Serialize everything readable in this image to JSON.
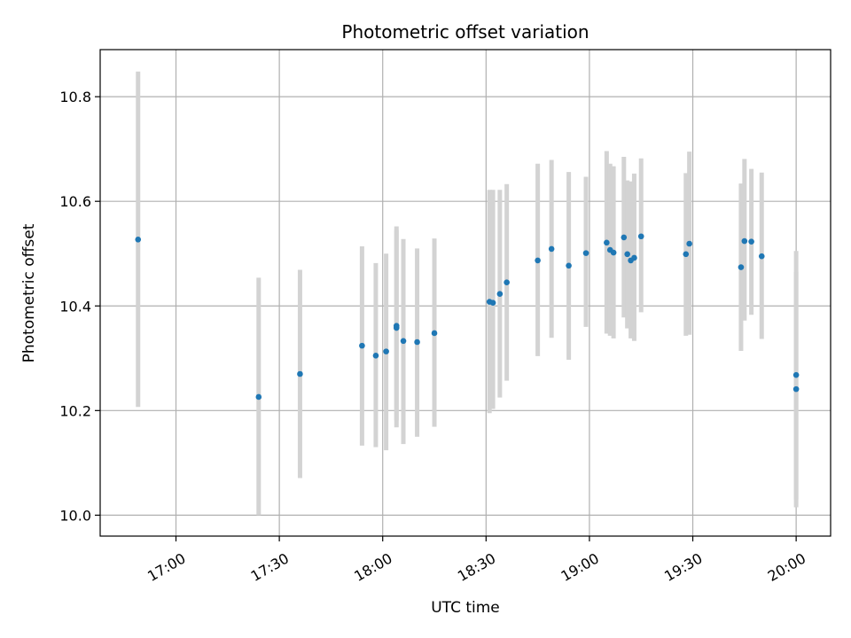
{
  "chart_data": {
    "type": "scatter",
    "title": "Photometric offset variation",
    "xlabel": "UTC time",
    "ylabel": "Photometric offset",
    "grid": true,
    "x_ticks": [
      "17:00",
      "17:30",
      "18:00",
      "18:30",
      "19:00",
      "19:30",
      "20:00"
    ],
    "y_ticks": [
      "10.0",
      "10.2",
      "10.4",
      "10.6",
      "10.8"
    ],
    "xlim": [
      "16:38",
      "20:10"
    ],
    "ylim": [
      9.96,
      10.89
    ],
    "colors": {
      "points": "#1f77b4",
      "errorbars": "#d3d3d3",
      "grid": "#b0b0b0"
    },
    "series": [
      {
        "x": [
          "16:49",
          "17:24",
          "17:36",
          "17:54",
          "17:58",
          "18:01",
          "18:04",
          "18:04",
          "18:06",
          "18:10",
          "18:15",
          "18:31",
          "18:32",
          "18:34",
          "18:36",
          "18:45",
          "18:49",
          "18:54",
          "18:59",
          "19:05",
          "19:06",
          "19:07",
          "19:10",
          "19:11",
          "19:12",
          "19:13",
          "19:15",
          "19:28",
          "19:29",
          "19:44",
          "19:45",
          "19:47",
          "19:50",
          "20:00",
          "20:00"
        ],
        "y": [
          10.527,
          10.226,
          10.27,
          10.324,
          10.305,
          10.313,
          10.362,
          10.358,
          10.333,
          10.331,
          10.348,
          10.408,
          10.406,
          10.423,
          10.445,
          10.487,
          10.509,
          10.477,
          10.501,
          10.521,
          10.507,
          10.502,
          10.531,
          10.499,
          10.487,
          10.492,
          10.533,
          10.499,
          10.519,
          10.474,
          10.524,
          10.523,
          10.495,
          10.268,
          10.241
        ],
        "yerr_low": [
          10.207,
          10.0,
          10.071,
          10.133,
          10.13,
          10.124,
          10.181,
          10.168,
          10.136,
          10.15,
          10.169,
          10.195,
          10.203,
          10.225,
          10.257,
          10.304,
          10.339,
          10.297,
          10.36,
          10.347,
          10.343,
          10.338,
          10.378,
          10.357,
          10.338,
          10.333,
          10.388,
          10.343,
          10.345,
          10.314,
          10.372,
          10.383,
          10.337,
          10.03,
          10.015
        ],
        "yerr_high": [
          10.848,
          10.454,
          10.469,
          10.514,
          10.482,
          10.5,
          10.552,
          10.545,
          10.528,
          10.51,
          10.529,
          10.622,
          10.622,
          10.622,
          10.633,
          10.672,
          10.679,
          10.656,
          10.647,
          10.696,
          10.672,
          10.667,
          10.685,
          10.64,
          10.638,
          10.653,
          10.682,
          10.654,
          10.695,
          10.634,
          10.681,
          10.662,
          10.655,
          10.505,
          10.465
        ]
      }
    ]
  }
}
